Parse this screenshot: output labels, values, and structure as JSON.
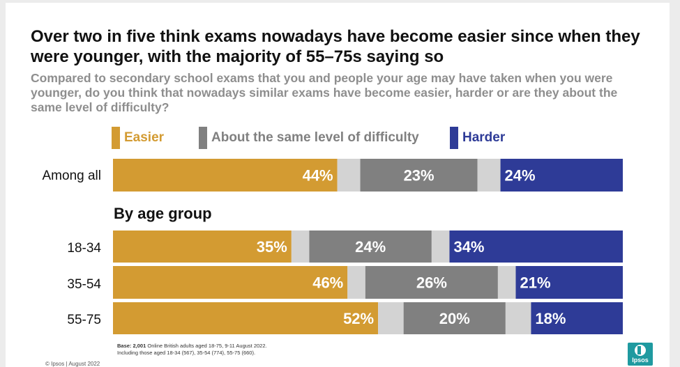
{
  "title": "Over two in five think exams nowadays have become easier since when they were younger, with the majority of 55–75s saying so",
  "subtitle": "Compared to secondary school exams that you and people your age may have taken when you were younger, do you think that nowadays similar exams have become easier, harder or are they about the same level of difficulty?",
  "section_label": "By age group",
  "base_note_bold": "Base: 2,001",
  "base_note_line1": " Online British adults aged 18-75, 9-11 August 2022.",
  "base_note_line2": "Including those aged 18-34 (567), 35-54 (774), 55-75 (660).",
  "copyright": "© Ipsos | August 2022",
  "logo_text": "Ipsos",
  "colors": {
    "easier": "#d39b32",
    "same": "#808080",
    "harder": "#2e3b97",
    "gap": "#d3d3d3",
    "logo": "#1f9aa0"
  },
  "chart_data": {
    "type": "bar",
    "orientation": "horizontal",
    "stacked": true,
    "categories": [
      "Among all",
      "18-34",
      "35-54",
      "55-75"
    ],
    "series": [
      {
        "name": "Easier",
        "values": [
          44,
          35,
          46,
          52
        ],
        "labels": [
          "44%",
          "35%",
          "46%",
          "52%"
        ]
      },
      {
        "name": "About the same level of difficulty",
        "values": [
          23,
          24,
          26,
          20
        ],
        "labels": [
          "23%",
          "24%",
          "26%",
          "20%"
        ]
      },
      {
        "name": "Harder",
        "values": [
          24,
          34,
          21,
          18
        ],
        "labels": [
          "24%",
          "34%",
          "21%",
          "18%"
        ]
      }
    ],
    "unlabeled_remainder_per_row": [
      9,
      7,
      7,
      10
    ],
    "xlim": [
      0,
      100
    ],
    "legend_position": "top"
  }
}
